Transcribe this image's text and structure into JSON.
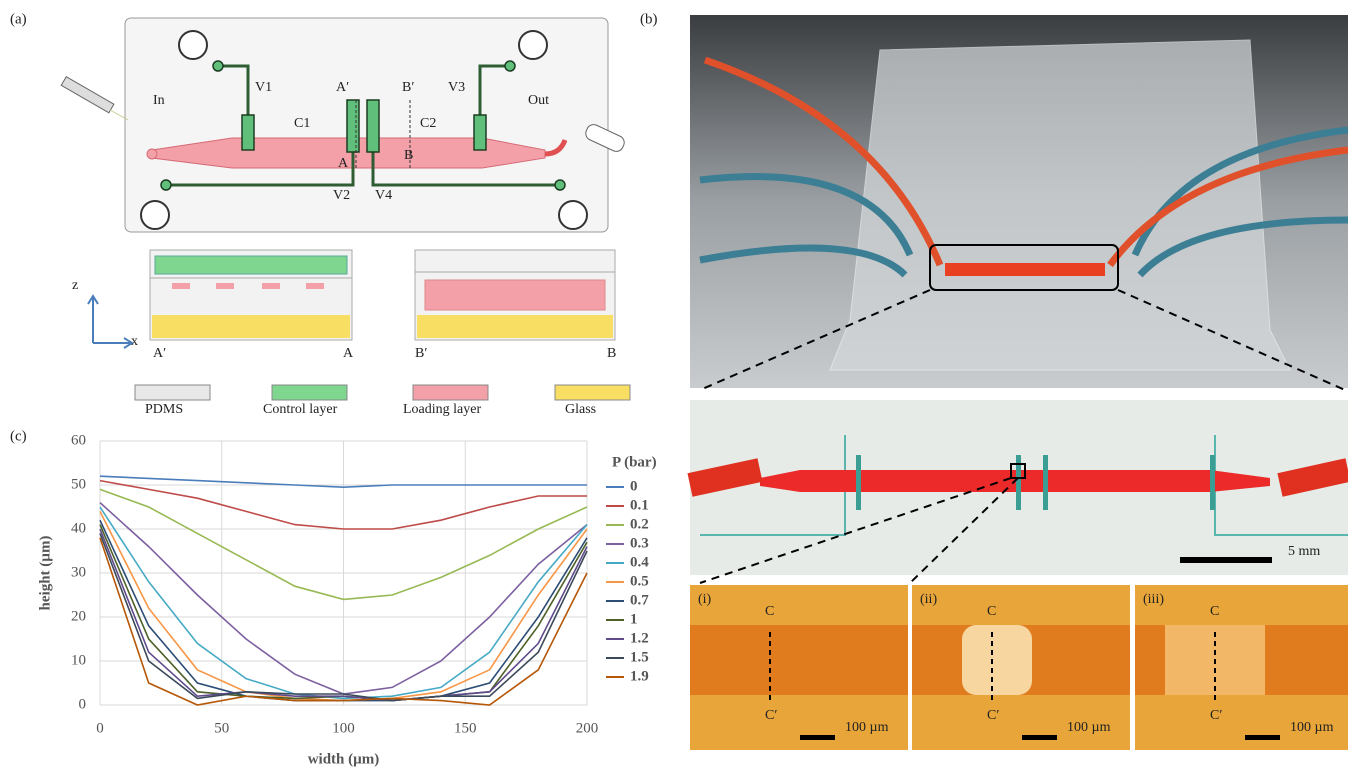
{
  "panel_a": {
    "label": "(a)",
    "schematic": {
      "inlet": "In",
      "outlet": "Out",
      "valves": [
        "V1",
        "V2",
        "V3",
        "V4"
      ],
      "chambers": [
        "C1",
        "C2"
      ],
      "sections": [
        "A′",
        "A",
        "B′",
        "B"
      ]
    },
    "axes": {
      "z": "z",
      "x": "x"
    },
    "cross_section_labels": [
      "A′",
      "A",
      "B′",
      "B"
    ],
    "legend": [
      "PDMS",
      "Control layer",
      "Loading layer",
      "Glass"
    ]
  },
  "panel_b": {
    "label": "(b)",
    "scale_bar": "5 mm",
    "insets": [
      {
        "label": "(i)",
        "top": "C",
        "bottom": "C′",
        "scale": "100 µm"
      },
      {
        "label": "(ii)",
        "top": "C",
        "bottom": "C′",
        "scale": "100 µm"
      },
      {
        "label": "(iii)",
        "top": "C",
        "bottom": "C′",
        "scale": "100 µm"
      }
    ]
  },
  "chart_data": {
    "label": "(c)",
    "type": "line",
    "x_label": "width (µm)",
    "y_label": "height (µm)",
    "legend_title": "P (bar)",
    "x": [
      0,
      20,
      40,
      60,
      80,
      100,
      120,
      140,
      160,
      180,
      200
    ],
    "xlim": [
      0,
      200
    ],
    "xticks": [
      0,
      50,
      100,
      150,
      200
    ],
    "ylim": [
      0,
      60
    ],
    "yticks": [
      0,
      10,
      20,
      30,
      40,
      50,
      60
    ],
    "grid": true,
    "series": [
      {
        "name": "0",
        "color": "#4a7ebb",
        "values": [
          52,
          51.5,
          51,
          50.5,
          50,
          49.5,
          50,
          50,
          50,
          50,
          50
        ]
      },
      {
        "name": "0.1",
        "color": "#be4b48",
        "values": [
          51,
          49,
          47,
          44,
          41,
          40,
          40,
          42,
          45,
          47.5,
          47.5
        ]
      },
      {
        "name": "0.2",
        "color": "#98b954",
        "values": [
          49,
          45,
          39,
          33,
          27,
          24,
          25,
          29,
          34,
          40,
          45
        ]
      },
      {
        "name": "0.3",
        "color": "#7d60a0",
        "values": [
          46,
          36,
          25,
          15,
          7,
          2.5,
          4,
          10,
          20,
          32,
          41
        ]
      },
      {
        "name": "0.4",
        "color": "#46aac5",
        "values": [
          45,
          28,
          14,
          6,
          2.5,
          1.5,
          2,
          4,
          12,
          28,
          41
        ]
      },
      {
        "name": "0.5",
        "color": "#f79646",
        "values": [
          44,
          22,
          8,
          3,
          1.5,
          1,
          1.5,
          3,
          8,
          25,
          40
        ]
      },
      {
        "name": "0.7",
        "color": "#2c4d75",
        "values": [
          42,
          18,
          5,
          2,
          1,
          1,
          1,
          2,
          5,
          20,
          38
        ]
      },
      {
        "name": "1",
        "color": "#4d6128",
        "values": [
          41,
          15,
          3,
          2,
          1.5,
          2,
          1,
          2,
          3,
          18,
          37
        ]
      },
      {
        "name": "1.2",
        "color": "#5f4b8b",
        "values": [
          40,
          12,
          2,
          3,
          2,
          2,
          1,
          2,
          3,
          14,
          36
        ]
      },
      {
        "name": "1.5",
        "color": "#3b4a5a",
        "values": [
          39,
          10,
          1.5,
          3,
          2.5,
          2.5,
          1,
          2,
          2,
          12,
          35
        ]
      },
      {
        "name": "1.9",
        "color": "#b65708",
        "values": [
          38,
          5,
          0,
          2,
          1,
          1,
          1.5,
          1,
          0,
          8,
          30
        ]
      }
    ]
  }
}
